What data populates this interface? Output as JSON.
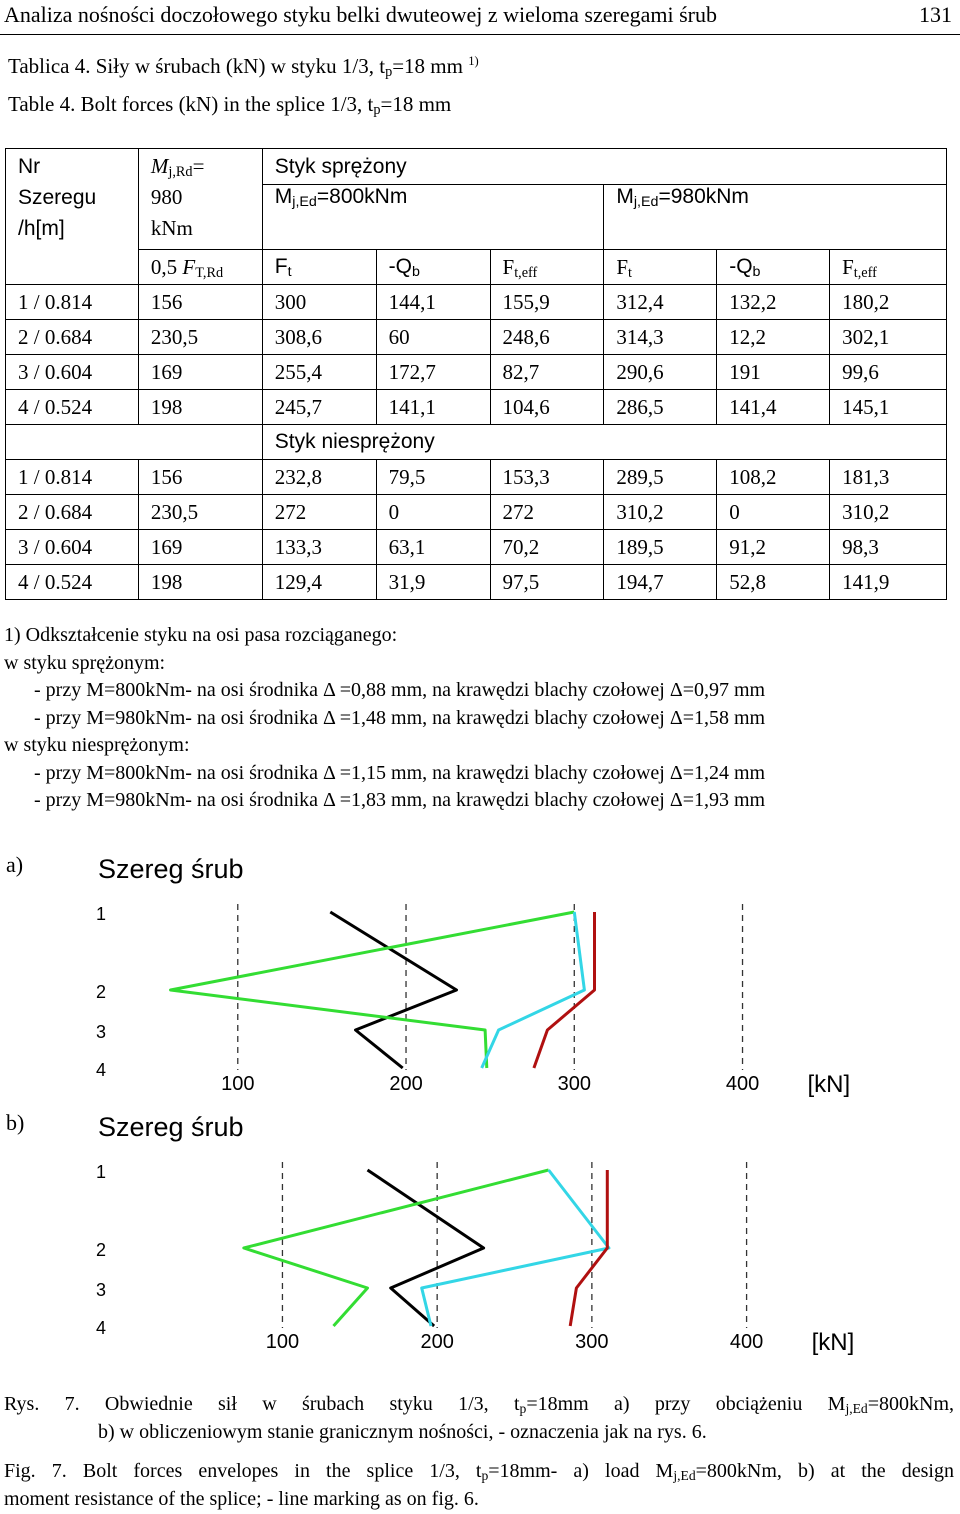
{
  "header": {
    "title": "Analiza nośności doczołowego styku belki dwuteowej z wieloma szeregami śrub",
    "page": "131"
  },
  "caption_pl": {
    "text": "Tablica 4. Siły w śrubach (kN) w styku 1/3, t",
    "sub": "p",
    "rest": "=18 mm",
    "sup": "1)"
  },
  "caption_en": {
    "text": "Table 4. Bolt forces (kN) in the splice 1/3, t",
    "sub": "p",
    "rest": "=18 mm"
  },
  "table": {
    "col1_header": [
      "Nr",
      "Szeregu",
      "/h[m]"
    ],
    "col2_header": {
      "M": "M",
      "sub": "j,Rd",
      "eq": "=",
      "val": "980",
      "unit": "kNm"
    },
    "group_prestressed": "Styk sprężony",
    "group_nonprestressed": "Styk niesprężony",
    "m800": {
      "M": "M",
      "sub": "j,Ed",
      "rest": "=800kNm"
    },
    "m980": {
      "M": "M",
      "sub": "j,Ed",
      "rest": "=980kNm"
    },
    "sub_headers": {
      "ft_rd": {
        "pre": "0,5 ",
        "F": "F",
        "sub": "T,Rd"
      },
      "Ft": {
        "main": "F",
        "sub": "t"
      },
      "Qb": {
        "main": "-Q",
        "sub": "b"
      },
      "Fteff": {
        "main": "F",
        "sub": "t,eff"
      }
    },
    "prestressed_rows": [
      [
        "1 / 0.814",
        "156",
        "300",
        "144,1",
        "155,9",
        "312,4",
        "132,2",
        "180,2"
      ],
      [
        "2 / 0.684",
        "230,5",
        "308,6",
        "60",
        "248,6",
        "314,3",
        "12,2",
        "302,1"
      ],
      [
        "3 / 0.604",
        "169",
        "255,4",
        "172,7",
        "82,7",
        "290,6",
        "191",
        "99,6"
      ],
      [
        "4 / 0.524",
        "198",
        "245,7",
        "141,1",
        "104,6",
        "286,5",
        "141,4",
        "145,1"
      ]
    ],
    "nonprestressed_rows": [
      [
        "1 / 0.814",
        "156",
        "232,8",
        "79,5",
        "153,3",
        "289,5",
        "108,2",
        "181,3"
      ],
      [
        "2 / 0.684",
        "230,5",
        "272",
        "0",
        "272",
        "310,2",
        "0",
        "310,2"
      ],
      [
        "3 / 0.604",
        "169",
        "133,3",
        "63,1",
        "70,2",
        "189,5",
        "91,2",
        "98,3"
      ],
      [
        "4 / 0.524",
        "198",
        "129,4",
        "31,9",
        "97,5",
        "194,7",
        "52,8",
        "141,9"
      ]
    ]
  },
  "notes": [
    "1) Odkształcenie styku na osi pasa rozciąganego:",
    "w styku sprężonym:",
    "- przy M=800kNm- na osi środnika Δ =0,88 mm, na krawędzi blachy czołowej Δ=0,97 mm",
    "- przy M=980kNm- na osi środnika Δ =1,48 mm, na krawędzi blachy czołowej Δ=1,58 mm",
    "w styku niesprężonym:",
    "- przy M=800kNm- na osi środnika Δ =1,15 mm, na krawędzi blachy czołowej Δ=1,24 mm",
    "- przy M=980kNm- na osi środnika Δ =1,83 mm, na krawędzi blachy czołowej Δ=1,93 mm"
  ],
  "figure_labels": {
    "a": "a)",
    "b": "b)"
  },
  "colors": {
    "black": "#000000",
    "cyan": "#33d6e6",
    "green": "#33dd33",
    "red": "#b01010",
    "grid": "#333333"
  },
  "chart_data": [
    {
      "type": "line",
      "title": "Szereg śrub",
      "unit_label": "[kN]",
      "y_ticks": [
        "1",
        "2",
        "3",
        "4"
      ],
      "x_ticks": [
        100,
        200,
        300,
        400
      ],
      "xlim": [
        30,
        430
      ],
      "series": [
        {
          "color": "black",
          "x": [
            155,
            230,
            170,
            198
          ]
        },
        {
          "color": "green",
          "x": [
            300,
            60,
            247,
            248
          ]
        },
        {
          "color": "cyan",
          "x": [
            300,
            306,
            255,
            245
          ]
        },
        {
          "color": "red",
          "x": [
            312,
            312,
            284,
            276
          ]
        }
      ]
    },
    {
      "type": "line",
      "title": "Szereg śrub",
      "unit_label": "[kN]",
      "y_ticks": [
        "1",
        "2",
        "3",
        "4"
      ],
      "x_ticks": [
        100,
        200,
        300,
        400
      ],
      "xlim": [
        -5,
        430
      ],
      "series": [
        {
          "color": "black",
          "x": [
            155,
            230,
            170,
            198
          ]
        },
        {
          "color": "green",
          "x": [
            272,
            75,
            155,
            133
          ]
        },
        {
          "color": "cyan",
          "x": [
            272,
            311,
            190,
            196
          ]
        },
        {
          "color": "red",
          "x": [
            310,
            310,
            290,
            286
          ]
        }
      ]
    }
  ],
  "figcap_pl": {
    "l1a": "Rys. 7. Obwiednie sił w śrubach styku 1/3, t",
    "l1sub1": "p",
    "l1b": "=18mm a) przy obciążeniu M",
    "l1sub2": "j,Ed",
    "l1c": "=800kNm,",
    "l2": "b) w obliczeniowym stanie granicznym nośności, - oznaczenia jak na rys. 6."
  },
  "figcap_en": {
    "l1a": "Fig. 7. Bolt forces envelopes in the splice 1/3, t",
    "l1sub1": "p",
    "l1b": "=18mm- a) load M",
    "l1sub2": "j,Ed",
    "l1c": "=800kNm, b) at the design",
    "l2": "moment resistance of the splice; - line marking as on fig. 6."
  }
}
